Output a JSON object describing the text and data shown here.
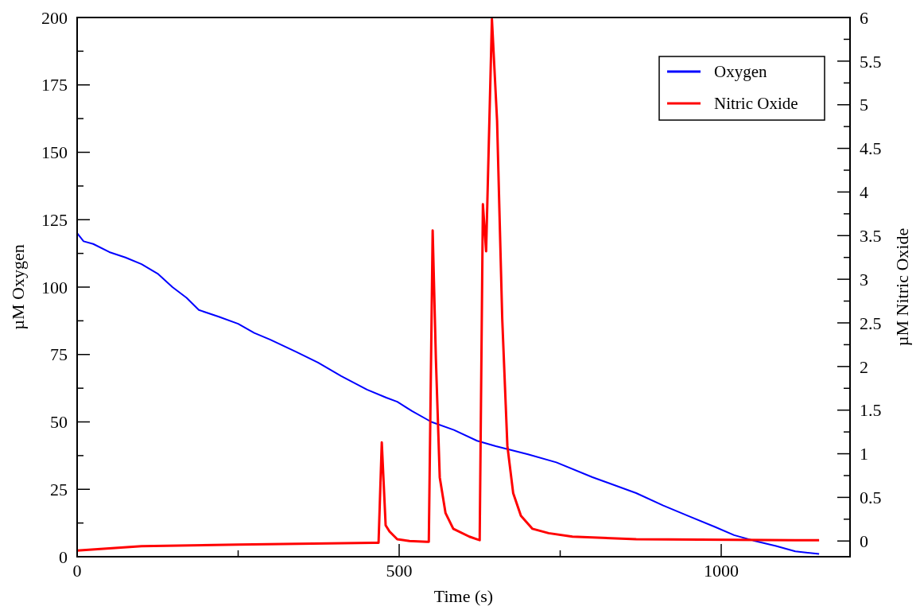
{
  "chart_data": {
    "type": "line",
    "xlabel": "Time (s)",
    "ylabel": "µM Oxygen",
    "y2label": "µM Nitric Oxide",
    "xlim": [
      0,
      1200
    ],
    "xticks": [
      0,
      {
        "value": 250,
        "label": null
      },
      500,
      {
        "value": 750,
        "label": null
      },
      1000
    ],
    "ylim": [
      0,
      200
    ],
    "yticks": [
      0,
      {
        "value": 12.5,
        "label": null
      },
      25,
      {
        "value": 37.5,
        "label": null
      },
      50,
      {
        "value": 62.5,
        "label": null
      },
      75,
      {
        "value": 87.5,
        "label": null
      },
      100,
      {
        "value": 112.5,
        "label": null
      },
      125,
      {
        "value": 137.5,
        "label": null
      },
      150,
      {
        "value": 162.5,
        "label": null
      },
      175,
      {
        "value": 187.5,
        "label": null
      },
      200
    ],
    "y2lim": [
      -0.18,
      6
    ],
    "y2ticks": [
      0,
      {
        "value": 0.25,
        "label": null
      },
      0.5,
      {
        "value": 0.75,
        "label": null
      },
      1,
      {
        "value": 1.25,
        "label": null
      },
      1.5,
      {
        "value": 1.75,
        "label": null
      },
      2,
      {
        "value": 2.25,
        "label": null
      },
      2.5,
      {
        "value": 2.75,
        "label": null
      },
      3,
      {
        "value": 3.25,
        "label": null
      },
      3.5,
      {
        "value": 3.75,
        "label": null
      },
      4,
      {
        "value": 4.25,
        "label": null
      },
      4.5,
      {
        "value": 4.75,
        "label": null
      },
      5,
      {
        "value": 5.25,
        "label": null
      },
      5.5,
      {
        "value": 5.75,
        "label": null
      },
      6
    ],
    "legend": "top right",
    "grid": false,
    "marker": "none",
    "line_style": "solid",
    "series": [
      {
        "name": "Oxygen",
        "color": "#0000ff",
        "x": [
          0,
          10,
          25,
          50,
          75,
          100,
          125,
          148,
          170,
          189,
          220,
          250,
          275,
          300,
          340,
          374,
          410,
          450,
          480,
          497,
          520,
          550,
          585,
          621,
          650,
          700,
          744,
          800,
          868,
          910,
          950,
          991,
          1020,
          1050,
          1085,
          1115,
          1152
        ],
        "values": [
          120,
          117,
          116,
          113,
          111,
          108.5,
          105,
          100,
          96,
          91.5,
          89,
          86.4,
          83,
          80.5,
          76,
          72,
          67,
          62,
          59,
          57.5,
          54,
          50,
          47,
          43,
          41,
          38,
          35,
          29.5,
          23.6,
          19,
          15,
          11,
          8,
          6,
          4,
          2,
          1
        ]
      },
      {
        "name": "Nitric Oxide",
        "color": "#ff0000",
        "axis": "y2",
        "x": [
          0,
          100,
          250,
          460,
          468,
          473,
          479,
          485,
          497,
          516,
          543,
          546,
          552,
          557,
          563,
          572,
          584,
          609,
          621,
          625,
          630,
          635,
          644,
          652,
          660,
          668,
          677,
          689,
          707,
          732,
          769,
          868,
          1115,
          1152
        ],
        "values": [
          -0.11,
          -0.06,
          -0.04,
          -0.02,
          -0.02,
          1.13,
          0.18,
          0.11,
          0.02,
          0,
          -0.01,
          -0.01,
          3.56,
          2.09,
          0.73,
          0.32,
          0.14,
          0.05,
          0.02,
          0.01,
          3.86,
          3.32,
          5.98,
          4.82,
          2.55,
          1.09,
          0.55,
          0.29,
          0.14,
          0.09,
          0.05,
          0.02,
          0.01,
          0.01
        ]
      }
    ]
  }
}
